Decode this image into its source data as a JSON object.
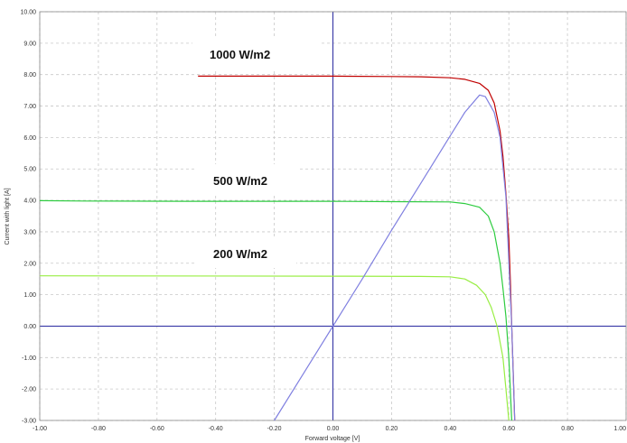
{
  "chart_data": {
    "type": "line",
    "xlabel": "Forward voltage [V]",
    "ylabel": "Current with light [A]",
    "xlim": [
      -1.0,
      1.0
    ],
    "ylim": [
      -3.0,
      10.0
    ],
    "x_ticks": [
      "-1.00",
      "-0.80",
      "-0.60",
      "-0.40",
      "-0.20",
      "0.00",
      "0.20",
      "0.40",
      "0.60",
      "0.80",
      "1.00"
    ],
    "y_ticks": [
      "10.00",
      "9.00",
      "8.00",
      "7.00",
      "6.00",
      "5.00",
      "4.00",
      "3.00",
      "2.00",
      "1.00",
      "0.00",
      "-1.00",
      "-2.00",
      "-3.00"
    ],
    "grid": true,
    "annotations": [
      "1000 W/m2",
      "500 W/m2",
      "200 W/m2"
    ],
    "series": [
      {
        "color": "#c00000",
        "points": [
          [
            -0.46,
            7.95
          ],
          [
            -0.2,
            7.95
          ],
          [
            0.0,
            7.95
          ],
          [
            0.2,
            7.94
          ],
          [
            0.3,
            7.93
          ],
          [
            0.4,
            7.9
          ],
          [
            0.45,
            7.85
          ],
          [
            0.5,
            7.72
          ],
          [
            0.53,
            7.5
          ],
          [
            0.55,
            7.1
          ],
          [
            0.57,
            6.2
          ],
          [
            0.58,
            5.4
          ],
          [
            0.59,
            4.2
          ],
          [
            0.6,
            2.8
          ],
          [
            0.605,
            1.5
          ],
          [
            0.61,
            0.0
          ],
          [
            0.615,
            -1.5
          ],
          [
            0.62,
            -3.0
          ]
        ]
      },
      {
        "color": "#2ecc40",
        "points": [
          [
            -1.0,
            3.99
          ],
          [
            -0.85,
            3.98
          ],
          [
            -0.5,
            3.97
          ],
          [
            0.0,
            3.97
          ],
          [
            0.2,
            3.96
          ],
          [
            0.4,
            3.95
          ],
          [
            0.45,
            3.9
          ],
          [
            0.5,
            3.78
          ],
          [
            0.53,
            3.5
          ],
          [
            0.55,
            3.0
          ],
          [
            0.57,
            2.0
          ],
          [
            0.58,
            1.2
          ],
          [
            0.59,
            0.3
          ],
          [
            0.6,
            -1.0
          ],
          [
            0.61,
            -3.0
          ]
        ]
      },
      {
        "color": "#99ee44",
        "points": [
          [
            -1.0,
            1.6
          ],
          [
            0.0,
            1.59
          ],
          [
            0.3,
            1.58
          ],
          [
            0.4,
            1.57
          ],
          [
            0.45,
            1.5
          ],
          [
            0.49,
            1.3
          ],
          [
            0.52,
            1.0
          ],
          [
            0.54,
            0.6
          ],
          [
            0.56,
            0.0
          ],
          [
            0.58,
            -1.0
          ],
          [
            0.59,
            -2.0
          ],
          [
            0.6,
            -3.0
          ]
        ]
      },
      {
        "color": "#8080e0",
        "points": [
          [
            -0.2,
            -3.0
          ],
          [
            -0.1,
            -1.5
          ],
          [
            0.0,
            0.0
          ],
          [
            0.1,
            1.5
          ],
          [
            0.2,
            3.05
          ],
          [
            0.3,
            4.55
          ],
          [
            0.4,
            6.05
          ],
          [
            0.45,
            6.8
          ],
          [
            0.5,
            7.35
          ],
          [
            0.52,
            7.3
          ],
          [
            0.55,
            6.8
          ],
          [
            0.57,
            6.0
          ],
          [
            0.59,
            4.1
          ],
          [
            0.61,
            0.0
          ],
          [
            0.62,
            -3.0
          ]
        ]
      }
    ]
  }
}
